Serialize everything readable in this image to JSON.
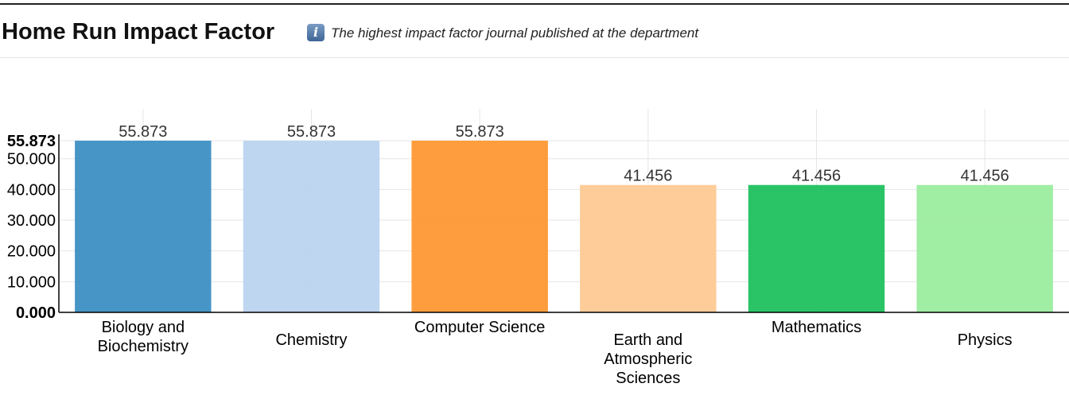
{
  "header": {
    "title": "Home Run Impact Factor",
    "info_icon": "info-icon",
    "info_glyph": "i",
    "subtitle": "The highest impact factor journal published at the department"
  },
  "chart_data": {
    "type": "bar",
    "title": "Home Run Impact Factor",
    "subtitle": "The highest impact factor journal published at the department",
    "xlabel": "",
    "ylabel": "",
    "categories": [
      [
        "Biology and",
        "Biochemistry"
      ],
      [
        "Chemistry"
      ],
      [
        "Computer Science"
      ],
      [
        "Earth and",
        "Atmospheric",
        "Sciences"
      ],
      [
        "Mathematics"
      ],
      [
        "Physics"
      ]
    ],
    "values": [
      55.873,
      55.873,
      55.873,
      41.456,
      41.456,
      41.456
    ],
    "data_labels": [
      "55.873",
      "55.873",
      "55.873",
      "41.456",
      "41.456",
      "41.456"
    ],
    "colors": [
      "#3d8fc4",
      "#bcd4ef",
      "#fe9833",
      "#fec994",
      "#1fc15e",
      "#9bec9f"
    ],
    "ylim": [
      0,
      55.873
    ],
    "yticks": [
      0,
      10,
      20,
      30,
      40,
      50,
      55.873
    ],
    "ytick_labels": [
      "0.000",
      "10.000",
      "20.000",
      "30.000",
      "40.000",
      "50.000",
      "55.873"
    ],
    "grid": true,
    "legend": "none"
  }
}
